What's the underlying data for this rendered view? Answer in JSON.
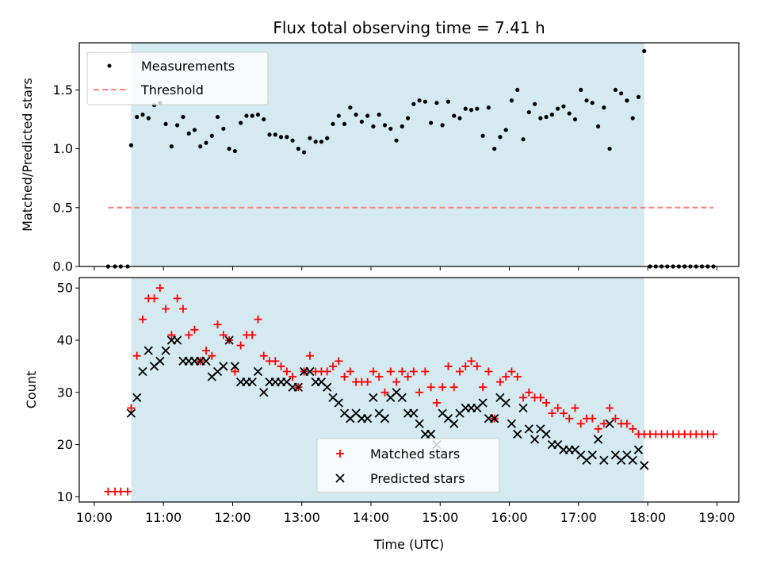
{
  "chart_data": [
    {
      "type": "scatter",
      "title": "Flux total observing time = 7.41 h",
      "ylabel": "Matched/Predicted stars",
      "xlim": [
        "10:00",
        "19:00"
      ],
      "ylim": [
        0,
        1.9
      ],
      "yticks": [
        0.0,
        0.5,
        1.0,
        1.5
      ],
      "shaded_region": {
        "x": [
          "10:32",
          "17:57"
        ],
        "color": "#d4eaf0"
      },
      "threshold": {
        "name": "Threshold",
        "y": 0.5,
        "x": [
          "10:12",
          "18:57"
        ],
        "color": "#ff7f7f",
        "style": "dashed"
      },
      "legend": {
        "location": "top-left",
        "entries": [
          "Measurements",
          "Threshold"
        ]
      },
      "series": [
        {
          "name": "Measurements",
          "color": "#000000",
          "marker": "dot",
          "x": [
            "10:12",
            "10:18",
            "10:23",
            "10:29",
            "10:32",
            "10:37",
            "10:42",
            "10:47",
            "10:52",
            "10:57",
            "11:02",
            "11:07",
            "11:12",
            "11:17",
            "11:22",
            "11:27",
            "11:32",
            "11:37",
            "11:42",
            "11:47",
            "11:52",
            "11:57",
            "12:02",
            "12:07",
            "12:12",
            "12:17",
            "12:22",
            "12:27",
            "12:32",
            "12:37",
            "12:42",
            "12:47",
            "12:52",
            "12:57",
            "13:02",
            "13:07",
            "13:12",
            "13:17",
            "13:22",
            "13:27",
            "13:32",
            "13:37",
            "13:42",
            "13:47",
            "13:52",
            "13:57",
            "14:02",
            "14:07",
            "14:12",
            "14:17",
            "14:22",
            "14:27",
            "14:32",
            "14:37",
            "14:42",
            "14:47",
            "14:52",
            "14:57",
            "15:02",
            "15:07",
            "15:12",
            "15:17",
            "15:22",
            "15:27",
            "15:32",
            "15:37",
            "15:42",
            "15:47",
            "15:52",
            "15:57",
            "16:02",
            "16:07",
            "16:12",
            "16:17",
            "16:22",
            "16:27",
            "16:32",
            "16:37",
            "16:42",
            "16:47",
            "16:52",
            "16:57",
            "17:02",
            "17:07",
            "17:12",
            "17:17",
            "17:22",
            "17:27",
            "17:32",
            "17:37",
            "17:42",
            "17:47",
            "17:52",
            "17:57",
            "18:02",
            "18:07",
            "18:12",
            "18:17",
            "18:22",
            "18:27",
            "18:32",
            "18:37",
            "18:42",
            "18:47",
            "18:52",
            "18:57"
          ],
          "y": [
            0.0,
            0.0,
            0.0,
            0.0,
            1.03,
            1.27,
            1.29,
            1.26,
            1.37,
            1.39,
            1.21,
            1.02,
            1.2,
            1.27,
            1.13,
            1.16,
            1.02,
            1.05,
            1.11,
            1.27,
            1.17,
            1.0,
            0.98,
            1.22,
            1.28,
            1.28,
            1.29,
            1.25,
            1.12,
            1.12,
            1.1,
            1.1,
            1.07,
            1.0,
            0.97,
            1.09,
            1.06,
            1.06,
            1.09,
            1.21,
            1.28,
            1.21,
            1.35,
            1.29,
            1.23,
            1.28,
            1.19,
            1.29,
            1.2,
            1.17,
            1.07,
            1.19,
            1.26,
            1.38,
            1.41,
            1.4,
            1.22,
            1.39,
            1.2,
            1.4,
            1.28,
            1.26,
            1.34,
            1.33,
            1.34,
            1.11,
            1.35,
            1.0,
            1.1,
            1.16,
            1.41,
            1.5,
            1.08,
            1.31,
            1.38,
            1.26,
            1.27,
            1.29,
            1.34,
            1.36,
            1.3,
            1.25,
            1.5,
            1.41,
            1.39,
            1.19,
            1.35,
            1.0,
            1.5,
            1.47,
            1.41,
            1.26,
            1.44,
            1.83,
            0.0,
            0.0,
            0.0,
            0.0,
            0.0,
            0.0,
            0.0,
            0.0,
            0.0,
            0.0,
            0.0,
            0.0
          ]
        }
      ]
    },
    {
      "type": "scatter",
      "xlabel": "Time (UTC)",
      "ylabel": "Count",
      "xlim": [
        "10:00",
        "19:00"
      ],
      "ylim": [
        9,
        52
      ],
      "xticks": [
        "10:00",
        "11:00",
        "12:00",
        "13:00",
        "14:00",
        "15:00",
        "16:00",
        "17:00",
        "18:00",
        "19:00"
      ],
      "yticks": [
        10,
        20,
        30,
        40,
        50
      ],
      "shaded_region": {
        "x": [
          "10:32",
          "17:57"
        ],
        "color": "#d4eaf0"
      },
      "legend": {
        "location": "bottom-center",
        "entries": [
          "Matched stars",
          "Predicted stars"
        ]
      },
      "series": [
        {
          "name": "Matched stars",
          "color": "#ff0000",
          "marker": "plus",
          "x": [
            "10:12",
            "10:18",
            "10:23",
            "10:29",
            "10:32",
            "10:37",
            "10:42",
            "10:47",
            "10:52",
            "10:57",
            "11:02",
            "11:07",
            "11:12",
            "11:17",
            "11:22",
            "11:27",
            "11:32",
            "11:37",
            "11:42",
            "11:47",
            "11:52",
            "11:57",
            "12:02",
            "12:07",
            "12:12",
            "12:17",
            "12:22",
            "12:27",
            "12:32",
            "12:37",
            "12:42",
            "12:47",
            "12:52",
            "12:57",
            "13:02",
            "13:07",
            "13:12",
            "13:17",
            "13:22",
            "13:27",
            "13:32",
            "13:37",
            "13:42",
            "13:47",
            "13:52",
            "13:57",
            "14:02",
            "14:07",
            "14:12",
            "14:17",
            "14:22",
            "14:27",
            "14:32",
            "14:37",
            "14:42",
            "14:47",
            "14:52",
            "14:57",
            "15:02",
            "15:07",
            "15:12",
            "15:17",
            "15:22",
            "15:27",
            "15:32",
            "15:37",
            "15:42",
            "15:47",
            "15:52",
            "15:57",
            "16:02",
            "16:07",
            "16:12",
            "16:17",
            "16:22",
            "16:27",
            "16:32",
            "16:37",
            "16:42",
            "16:47",
            "16:52",
            "16:57",
            "17:02",
            "17:07",
            "17:12",
            "17:17",
            "17:22",
            "17:27",
            "17:32",
            "17:37",
            "17:42",
            "17:47",
            "17:52",
            "17:57",
            "18:02",
            "18:07",
            "18:12",
            "18:17",
            "18:22",
            "18:27",
            "18:32",
            "18:37",
            "18:42",
            "18:47",
            "18:52",
            "18:57"
          ],
          "y": [
            11,
            11,
            11,
            11,
            27,
            37,
            44,
            48,
            48,
            50,
            46,
            41,
            48,
            46,
            41,
            42,
            36,
            38,
            37,
            43,
            41,
            40,
            34,
            39,
            41,
            41,
            44,
            37,
            36,
            36,
            35,
            34,
            33,
            31,
            34,
            37,
            34,
            34,
            34,
            35,
            36,
            33,
            34,
            32,
            32,
            32,
            34,
            33,
            30,
            34,
            32,
            34,
            33,
            34,
            30,
            34,
            31,
            28,
            31,
            35,
            31,
            34,
            35,
            36,
            35,
            31,
            34,
            25,
            32,
            33,
            34,
            33,
            29,
            30,
            29,
            29,
            28,
            26,
            27,
            26,
            25,
            27,
            24,
            25,
            25,
            23,
            24,
            27,
            25,
            24,
            24,
            23,
            22,
            22,
            22,
            22,
            22,
            22,
            22,
            22,
            22,
            22,
            22,
            22,
            22,
            22
          ]
        },
        {
          "name": "Predicted stars",
          "color": "#000000",
          "marker": "x",
          "x": [
            "10:32",
            "10:37",
            "10:42",
            "10:47",
            "10:52",
            "10:57",
            "11:02",
            "11:07",
            "11:12",
            "11:17",
            "11:22",
            "11:27",
            "11:32",
            "11:37",
            "11:42",
            "11:47",
            "11:52",
            "11:57",
            "12:02",
            "12:07",
            "12:12",
            "12:17",
            "12:22",
            "12:27",
            "12:32",
            "12:37",
            "12:42",
            "12:47",
            "12:52",
            "12:57",
            "13:02",
            "13:07",
            "13:12",
            "13:17",
            "13:22",
            "13:27",
            "13:32",
            "13:37",
            "13:42",
            "13:47",
            "13:52",
            "13:57",
            "14:02",
            "14:07",
            "14:12",
            "14:17",
            "14:22",
            "14:27",
            "14:32",
            "14:37",
            "14:42",
            "14:47",
            "14:52",
            "14:57",
            "15:02",
            "15:07",
            "15:12",
            "15:17",
            "15:22",
            "15:27",
            "15:32",
            "15:37",
            "15:42",
            "15:47",
            "15:52",
            "15:57",
            "16:02",
            "16:07",
            "16:12",
            "16:17",
            "16:22",
            "16:27",
            "16:32",
            "16:37",
            "16:42",
            "16:47",
            "16:52",
            "16:57",
            "17:02",
            "17:07",
            "17:12",
            "17:17",
            "17:22",
            "17:27",
            "17:32",
            "17:37",
            "17:42",
            "17:47",
            "17:52",
            "17:57"
          ],
          "y": [
            26,
            29,
            34,
            38,
            35,
            36,
            38,
            40,
            40,
            36,
            36,
            36,
            36,
            36,
            33,
            34,
            35,
            40,
            35,
            32,
            32,
            32,
            34,
            30,
            32,
            32,
            32,
            32,
            31,
            31,
            34,
            34,
            32,
            32,
            31,
            29,
            28,
            26,
            25,
            26,
            25,
            25,
            29,
            26,
            25,
            29,
            30,
            29,
            26,
            26,
            24,
            22,
            22,
            20,
            26,
            25,
            24,
            26,
            27,
            27,
            27,
            28,
            25,
            25,
            29,
            28,
            24,
            22,
            27,
            23,
            21,
            23,
            22,
            20,
            20,
            19,
            19,
            19,
            18,
            17,
            18,
            21,
            17,
            24,
            18,
            17,
            18,
            17,
            19,
            16
          ]
        }
      ]
    }
  ]
}
